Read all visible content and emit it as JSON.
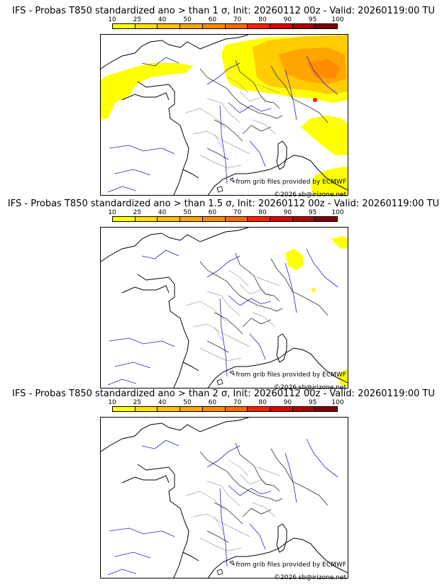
{
  "colorbar": {
    "ticks": [
      "10",
      "25",
      "40",
      "50",
      "60",
      "70",
      "80",
      "90",
      "95",
      "100"
    ],
    "colors": [
      "#ffff00",
      "#ffe000",
      "#ffc000",
      "#ffa500",
      "#ff8c00",
      "#ff6a00",
      "#ff2000",
      "#e00000",
      "#b00000",
      "#800000"
    ]
  },
  "panels": [
    {
      "title": "IFS - Probas T850  standardized ano > than 1 σ, Init: 20260112 00z - Valid: 20260119:00 TU",
      "credit1": "from grib files provided by ECMWF",
      "credit2": "©2026 sb@irizone.net",
      "intensity": "high"
    },
    {
      "title": "IFS - Probas T850  standardized ano > than 1.5 σ, Init: 20260112 00z - Valid: 20260119:00 TU",
      "credit1": "from grib files provided by ECMWF",
      "credit2": "©2026 sb@irizone.net",
      "intensity": "low"
    },
    {
      "title": "IFS - Probas T850  standardized ano > than 2 σ, Init: 20260112 00z - Valid: 20260119:00 TU",
      "credit1": "from grib files provided by ECMWF",
      "credit2": "©2026 sb@irizone.net",
      "intensity": "none"
    }
  ]
}
